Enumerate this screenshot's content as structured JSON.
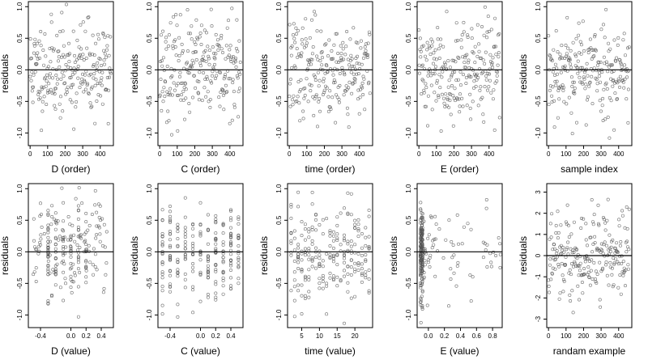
{
  "chart_data": [
    {
      "type": "scatter",
      "xlabel": "D (order)",
      "ylabel": "residuals",
      "xticks": [
        "0",
        "100",
        "200",
        "300",
        "400"
      ],
      "xtick_values": [
        0,
        100,
        200,
        300,
        400
      ],
      "xlim": [
        -10,
        475
      ],
      "yticks": [
        "-1.0",
        "-0.5",
        "0.0",
        "0.5",
        "1.0"
      ],
      "ytick_values": [
        -1,
        -0.5,
        0,
        0.5,
        1
      ],
      "ylim": [
        -1.2,
        1.08
      ],
      "hline": 0,
      "dist": {
        "n": 230,
        "mode": "index",
        "xmin": 0,
        "xmax": 460,
        "ysd": 0.38,
        "seed": 11
      }
    },
    {
      "type": "scatter",
      "xlabel": "C (order)",
      "ylabel": "residuals",
      "xticks": [
        "0",
        "100",
        "200",
        "300",
        "400"
      ],
      "xtick_values": [
        0,
        100,
        200,
        300,
        400
      ],
      "xlim": [
        -10,
        475
      ],
      "yticks": [
        "-1.0",
        "-0.5",
        "0.0",
        "0.5",
        "1.0"
      ],
      "ytick_values": [
        -1,
        -0.5,
        0,
        0.5,
        1
      ],
      "ylim": [
        -1.2,
        1.08
      ],
      "hline": 0,
      "dist": {
        "n": 230,
        "mode": "index",
        "xmin": 0,
        "xmax": 460,
        "ysd": 0.38,
        "seed": 23
      }
    },
    {
      "type": "scatter",
      "xlabel": "time (order)",
      "ylabel": "residuals",
      "xticks": [
        "0",
        "100",
        "200",
        "300",
        "400"
      ],
      "xtick_values": [
        0,
        100,
        200,
        300,
        400
      ],
      "xlim": [
        -10,
        475
      ],
      "yticks": [
        "-1.0",
        "-0.5",
        "0.0",
        "0.5",
        "1.0"
      ],
      "ytick_values": [
        -1,
        -0.5,
        0,
        0.5,
        1
      ],
      "ylim": [
        -1.2,
        1.08
      ],
      "hline": 0,
      "dist": {
        "n": 230,
        "mode": "index",
        "xmin": 0,
        "xmax": 460,
        "ysd": 0.38,
        "seed": 37
      }
    },
    {
      "type": "scatter",
      "xlabel": "E (order)",
      "ylabel": "residuals",
      "xticks": [
        "0",
        "100",
        "200",
        "300",
        "400"
      ],
      "xtick_values": [
        0,
        100,
        200,
        300,
        400
      ],
      "xlim": [
        -10,
        475
      ],
      "yticks": [
        "-1.0",
        "-0.5",
        "0.0",
        "0.5",
        "1.0"
      ],
      "ytick_values": [
        -1,
        -0.5,
        0,
        0.5,
        1
      ],
      "ylim": [
        -1.2,
        1.08
      ],
      "hline": 0,
      "dist": {
        "n": 230,
        "mode": "index",
        "xmin": 0,
        "xmax": 460,
        "ysd": 0.38,
        "seed": 41
      }
    },
    {
      "type": "scatter",
      "xlabel": "sample index",
      "ylabel": "residuals",
      "xticks": [
        "0",
        "100",
        "200",
        "300",
        "400"
      ],
      "xtick_values": [
        0,
        100,
        200,
        300,
        400
      ],
      "xlim": [
        -10,
        475
      ],
      "yticks": [
        "-1.0",
        "-0.5",
        "0.0",
        "0.5",
        "1.0"
      ],
      "ytick_values": [
        -1,
        -0.5,
        0,
        0.5,
        1
      ],
      "ylim": [
        -1.2,
        1.08
      ],
      "hline": 0,
      "dist": {
        "n": 230,
        "mode": "index",
        "xmin": 0,
        "xmax": 460,
        "ysd": 0.38,
        "seed": 53
      }
    },
    {
      "type": "scatter",
      "xlabel": "D (value)",
      "ylabel": "residuals",
      "xticks": [
        "-0.4",
        "0.0",
        "0.2",
        "0.4"
      ],
      "xtick_values": [
        -0.4,
        0,
        0.2,
        0.4
      ],
      "xlim": [
        -0.56,
        0.56
      ],
      "yticks": [
        "-1.0",
        "-0.5",
        "0.0",
        "0.5",
        "1.0"
      ],
      "ytick_values": [
        -1,
        -0.5,
        0,
        0.5,
        1
      ],
      "ylim": [
        -1.2,
        1.08
      ],
      "hline": 0,
      "dist": {
        "n": 230,
        "mode": "uniform_with_columns",
        "xmin": -0.5,
        "xmax": 0.5,
        "columns": [
          -0.3,
          -0.2,
          -0.1,
          0.0,
          0.1,
          0.2
        ],
        "ysd": 0.38,
        "seed": 67
      }
    },
    {
      "type": "scatter",
      "xlabel": "C (value)",
      "ylabel": "residuals",
      "xticks": [
        "-0.4",
        "0.0",
        "0.2",
        "0.4"
      ],
      "xtick_values": [
        -0.4,
        0,
        0.2,
        0.4
      ],
      "xlim": [
        -0.56,
        0.56
      ],
      "yticks": [
        "-1.0",
        "-0.5",
        "0.0",
        "0.5",
        "1.0"
      ],
      "ytick_values": [
        -1,
        -0.5,
        0,
        0.5,
        1
      ],
      "ylim": [
        -1.2,
        1.08
      ],
      "hline": 0,
      "dist": {
        "n": 230,
        "mode": "columns",
        "columns": [
          -0.5,
          -0.4,
          -0.3,
          -0.2,
          -0.1,
          0.0,
          0.1,
          0.2,
          0.3,
          0.4,
          0.5
        ],
        "ysd": 0.38,
        "seed": 71
      }
    },
    {
      "type": "scatter",
      "xlabel": "time (value)",
      "ylabel": "residuals",
      "xticks": [
        "5",
        "10",
        "15",
        "20"
      ],
      "xtick_values": [
        5,
        10,
        15,
        20
      ],
      "xlim": [
        1,
        25
      ],
      "yticks": [
        "-1.0",
        "-0.5",
        "0.0",
        "0.5",
        "1.0"
      ],
      "ytick_values": [
        -1,
        -0.5,
        0,
        0.5,
        1
      ],
      "ylim": [
        -1.2,
        1.08
      ],
      "hline": 0,
      "dist": {
        "n": 230,
        "mode": "columns",
        "columns": [
          2,
          3,
          4,
          5,
          6,
          7,
          8,
          9,
          10,
          11,
          12,
          13,
          14,
          15,
          16,
          17,
          18,
          19,
          20,
          21,
          22,
          23,
          24
        ],
        "ysd": 0.38,
        "seed": 83
      }
    },
    {
      "type": "scatter",
      "xlabel": "E (value)",
      "ylabel": "residuals",
      "xticks": [
        "0.0",
        "0.2",
        "0.4",
        "0.6",
        "0.8"
      ],
      "xtick_values": [
        0,
        0.2,
        0.4,
        0.6,
        0.8
      ],
      "xlim": [
        -0.14,
        0.92
      ],
      "yticks": [
        "-1.0",
        "-0.5",
        "0.0",
        "0.5",
        "1.0"
      ],
      "ytick_values": [
        -1,
        -0.5,
        0,
        0.5,
        1
      ],
      "ylim": [
        -1.2,
        1.08
      ],
      "hline": 0,
      "dist": {
        "n": 230,
        "mode": "skewed",
        "xmin": -0.1,
        "xmax": 0.9,
        "ysd": 0.38,
        "seed": 97
      }
    },
    {
      "type": "scatter",
      "xlabel": "randam example",
      "ylabel": "residuals",
      "xticks": [
        "0",
        "100",
        "200",
        "300",
        "400"
      ],
      "xtick_values": [
        0,
        100,
        200,
        300,
        400
      ],
      "xlim": [
        -10,
        475
      ],
      "yticks": [
        "-3",
        "-2",
        "-1",
        "0",
        "1",
        "2",
        "3"
      ],
      "ytick_values": [
        -3,
        -2,
        -1,
        0,
        1,
        2,
        3
      ],
      "ylim": [
        -3.4,
        3.4
      ],
      "hline": 0,
      "dist": {
        "n": 230,
        "mode": "index",
        "xmin": 0,
        "xmax": 460,
        "ysd": 1.0,
        "seed": 103
      }
    }
  ],
  "style": {
    "point_color": "#555555",
    "line_color": "#000000"
  }
}
